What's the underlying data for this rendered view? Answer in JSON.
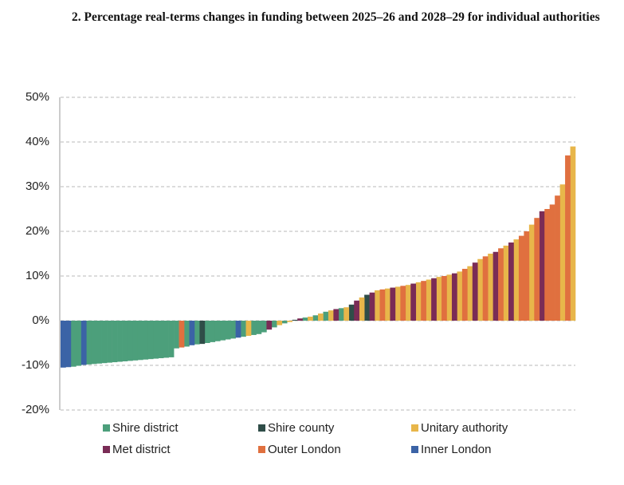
{
  "chart_data": {
    "type": "bar",
    "title": "2. Percentage real-terms changes in funding between 2025–26 and 2028–29 for individual authorities",
    "categories": [
      null,
      null,
      null,
      null,
      null,
      null,
      null,
      null,
      null,
      null,
      null,
      null,
      null,
      null,
      null,
      null,
      null,
      null,
      null,
      null,
      null,
      null,
      null,
      null,
      null,
      null,
      null,
      null,
      null,
      null,
      null,
      null,
      null,
      null,
      null,
      null,
      null,
      null,
      null,
      null,
      null,
      null,
      null,
      null,
      null,
      null,
      null,
      null,
      null,
      null,
      null,
      null,
      null,
      null,
      null,
      null,
      null,
      null,
      null,
      null,
      null,
      null,
      null,
      null,
      null,
      null,
      null,
      null,
      null,
      null,
      null,
      null,
      null,
      null,
      null,
      null,
      null,
      null,
      null,
      null,
      null,
      null,
      null,
      null,
      null,
      null,
      null,
      null,
      null,
      null,
      null,
      null,
      null,
      null,
      null,
      null,
      null,
      null,
      null,
      null
    ],
    "ylim": [
      -20,
      50
    ],
    "yticks": [
      {
        "value": -20,
        "label": "-20%"
      },
      {
        "value": -10,
        "label": "-10%"
      },
      {
        "value": 0,
        "label": "0%"
      },
      {
        "value": 10,
        "label": "10%"
      },
      {
        "value": 20,
        "label": "20%"
      },
      {
        "value": 30,
        "label": "30%"
      },
      {
        "value": 40,
        "label": "40%"
      },
      {
        "value": 50,
        "label": "50%"
      }
    ],
    "grid": true,
    "series": [
      {
        "name": "Shire district",
        "color": "#4c9f7b",
        "values": [
          null,
          null,
          -10.3,
          -10.1,
          null,
          -9.8,
          -9.7,
          -9.6,
          -9.5,
          -9.4,
          -9.3,
          -9.2,
          -9.1,
          -9.0,
          -8.9,
          -8.8,
          -8.7,
          -8.6,
          -8.5,
          -8.4,
          -8.3,
          -8.2,
          -6.2,
          null,
          -5.8,
          null,
          -5.3,
          null,
          -5.0,
          -4.8,
          -4.6,
          -4.4,
          -4.2,
          -4.0,
          null,
          -3.6,
          null,
          -3.2,
          -3.0,
          -2.6,
          null,
          -1.5,
          null,
          -0.6,
          null,
          null,
          null,
          0.7,
          null,
          1.2,
          null,
          2.0,
          null,
          null,
          2.8,
          null,
          null,
          null,
          null,
          null,
          null,
          null,
          null,
          null,
          null,
          null,
          null,
          null,
          null,
          null,
          null,
          null,
          null,
          null,
          null,
          null,
          null,
          null,
          null,
          null,
          null,
          null,
          null,
          null,
          null,
          null,
          null,
          null,
          null,
          null,
          null,
          null,
          null,
          null,
          null,
          null,
          null,
          null,
          null,
          null
        ]
      },
      {
        "name": "Shire county",
        "color": "#2f4d48",
        "values": [
          null,
          null,
          null,
          null,
          null,
          null,
          null,
          null,
          null,
          null,
          null,
          null,
          null,
          null,
          null,
          null,
          null,
          null,
          null,
          null,
          null,
          null,
          null,
          null,
          null,
          null,
          null,
          -5.2,
          null,
          null,
          null,
          null,
          null,
          null,
          null,
          null,
          null,
          null,
          null,
          null,
          null,
          null,
          null,
          null,
          null,
          0.2,
          null,
          null,
          null,
          null,
          null,
          null,
          null,
          null,
          null,
          null,
          3.6,
          null,
          null,
          5.8,
          null,
          null,
          null,
          null,
          null,
          null,
          null,
          null,
          null,
          null,
          null,
          null,
          null,
          null,
          null,
          null,
          null,
          null,
          null,
          null,
          null,
          null,
          null,
          null,
          null,
          null,
          null,
          null,
          null,
          null,
          null,
          null,
          null,
          null,
          null,
          null,
          null,
          null,
          null,
          null
        ]
      },
      {
        "name": "Unitary authority",
        "color": "#e8b64a",
        "values": [
          null,
          null,
          null,
          null,
          null,
          null,
          null,
          null,
          null,
          null,
          null,
          null,
          null,
          null,
          null,
          null,
          null,
          null,
          null,
          null,
          null,
          null,
          null,
          null,
          null,
          null,
          null,
          null,
          null,
          null,
          null,
          null,
          null,
          null,
          null,
          null,
          -3.4,
          null,
          null,
          null,
          null,
          null,
          -1.0,
          null,
          -0.3,
          null,
          null,
          null,
          0.9,
          null,
          1.6,
          null,
          2.3,
          null,
          null,
          3.0,
          null,
          null,
          5.2,
          null,
          null,
          6.8,
          null,
          7.2,
          null,
          7.6,
          null,
          8.0,
          null,
          8.6,
          null,
          9.2,
          null,
          9.8,
          null,
          10.3,
          null,
          11.0,
          null,
          12.2,
          null,
          13.8,
          null,
          15.0,
          null,
          null,
          16.8,
          null,
          18.2,
          null,
          null,
          21.5,
          null,
          null,
          null,
          null,
          null,
          30.5,
          null,
          39.0
        ]
      },
      {
        "name": "Met district",
        "color": "#7a2c56",
        "values": [
          null,
          null,
          null,
          null,
          null,
          null,
          null,
          null,
          null,
          null,
          null,
          null,
          null,
          null,
          null,
          null,
          null,
          null,
          null,
          null,
          null,
          null,
          null,
          null,
          null,
          null,
          null,
          null,
          null,
          null,
          null,
          null,
          null,
          null,
          null,
          null,
          null,
          null,
          null,
          null,
          -2.0,
          null,
          null,
          null,
          null,
          null,
          0.5,
          null,
          null,
          null,
          null,
          null,
          null,
          2.6,
          null,
          null,
          null,
          4.5,
          null,
          null,
          6.3,
          null,
          null,
          null,
          7.4,
          null,
          null,
          null,
          8.3,
          null,
          null,
          null,
          9.5,
          null,
          null,
          null,
          10.6,
          null,
          null,
          null,
          13.0,
          null,
          null,
          null,
          15.4,
          null,
          null,
          17.5,
          null,
          null,
          null,
          null,
          null,
          24.5,
          null,
          null,
          null,
          null,
          null,
          null
        ]
      },
      {
        "name": "Outer London",
        "color": "#e0703f",
        "values": [
          null,
          null,
          null,
          null,
          null,
          null,
          null,
          null,
          null,
          null,
          null,
          null,
          null,
          null,
          null,
          null,
          null,
          null,
          null,
          null,
          null,
          null,
          null,
          -6.0,
          null,
          null,
          null,
          null,
          null,
          null,
          null,
          null,
          null,
          null,
          null,
          null,
          null,
          null,
          null,
          null,
          null,
          null,
          null,
          null,
          null,
          null,
          null,
          null,
          null,
          null,
          null,
          null,
          null,
          null,
          null,
          null,
          null,
          null,
          null,
          null,
          null,
          null,
          7.0,
          null,
          null,
          null,
          7.8,
          null,
          null,
          null,
          8.9,
          null,
          null,
          null,
          10.0,
          null,
          null,
          null,
          11.6,
          null,
          null,
          null,
          14.4,
          null,
          null,
          16.2,
          null,
          null,
          null,
          19.0,
          20.0,
          null,
          23.0,
          null,
          25.0,
          26.0,
          28.0,
          null,
          37.0,
          null
        ]
      },
      {
        "name": "Inner London",
        "color": "#3b63a6",
        "values": [
          -10.5,
          -10.4,
          null,
          null,
          -9.9,
          null,
          null,
          null,
          null,
          null,
          null,
          null,
          null,
          null,
          null,
          null,
          null,
          null,
          null,
          null,
          null,
          null,
          null,
          null,
          null,
          -5.5,
          null,
          null,
          null,
          null,
          null,
          null,
          null,
          null,
          -3.8,
          null,
          null,
          null,
          null,
          null,
          null,
          null,
          null,
          null,
          null,
          null,
          null,
          null,
          null,
          null,
          null,
          null,
          null,
          null,
          null,
          null,
          null,
          null,
          null,
          null,
          null,
          null,
          null,
          null,
          null,
          null,
          null,
          null,
          null,
          null,
          null,
          null,
          null,
          null,
          null,
          null,
          null,
          null,
          null,
          null,
          null,
          null,
          null,
          null,
          null,
          null,
          null,
          null,
          null,
          null,
          null,
          null,
          null,
          null,
          null,
          null,
          null,
          null,
          null,
          null
        ]
      }
    ]
  }
}
